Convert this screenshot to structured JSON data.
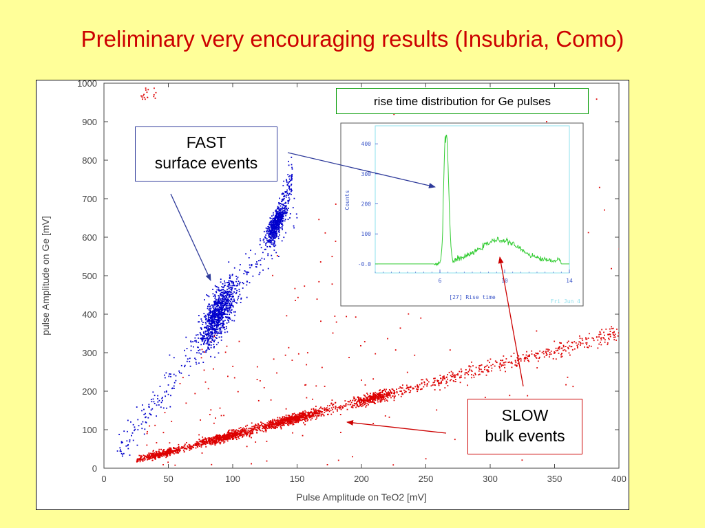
{
  "slide": {
    "title": "Preliminary very encouraging results (Insubria, Como)"
  },
  "chart_data": [
    {
      "type": "scatter",
      "xlabel": "Pulse Amplitude on TeO2 [mV]",
      "ylabel": "pulse Amplitude on Ge [mV]",
      "xlim": [
        0,
        400
      ],
      "ylim": [
        0,
        1000
      ],
      "x_ticks": [
        "0",
        "50",
        "100",
        "150",
        "200",
        "250",
        "300",
        "350",
        "400"
      ],
      "y_ticks": [
        "0",
        "100",
        "200",
        "300",
        "400",
        "500",
        "600",
        "700",
        "800",
        "900",
        "1000"
      ],
      "grid": false,
      "series": [
        {
          "color": "#0000cc",
          "clusters": [
            {
              "x_center": 88,
              "y_center": 400,
              "x_spread": 7,
              "y_spread": 30,
              "slope": 4.5,
              "count": 900
            },
            {
              "x_center": 133,
              "y_center": 635,
              "x_spread": 4,
              "y_spread": 15,
              "slope": 4.6,
              "count": 450
            },
            {
              "x_start": 10,
              "x_end": 150,
              "slope": 4.5,
              "count": 260
            }
          ]
        },
        {
          "color": "#dd0000",
          "clusters": [
            {
              "x_start": 25,
              "x_end": 400,
              "slope": 0.88,
              "intercept": 0,
              "count": 2600
            },
            {
              "x_start": 30,
              "x_end": 400,
              "slope": 0.5,
              "intercept": 0,
              "count": 250
            }
          ]
        }
      ]
    },
    {
      "type": "line",
      "xlabel": "[27] Rise time",
      "ylabel": "Counts",
      "xlim": [
        2,
        14
      ],
      "ylim": [
        -30,
        460
      ],
      "x_ticks": [
        "6",
        "10",
        "14"
      ],
      "y_ticks": [
        "-0.0",
        "100",
        "200",
        "300",
        "400"
      ],
      "corner_label": "Fri Jun 4",
      "color": "#33cc33",
      "peaks": [
        {
          "center": 6.4,
          "height": 430,
          "width": 0.14
        },
        {
          "center": 9.7,
          "height": 70,
          "width": 1.2
        }
      ]
    }
  ],
  "annotations": {
    "inset_caption": "rise time distribution for Ge pulses",
    "fast": {
      "line1": "FAST",
      "line2": "surface events"
    },
    "slow": {
      "line1": "SLOW",
      "line2": "bulk events"
    }
  }
}
